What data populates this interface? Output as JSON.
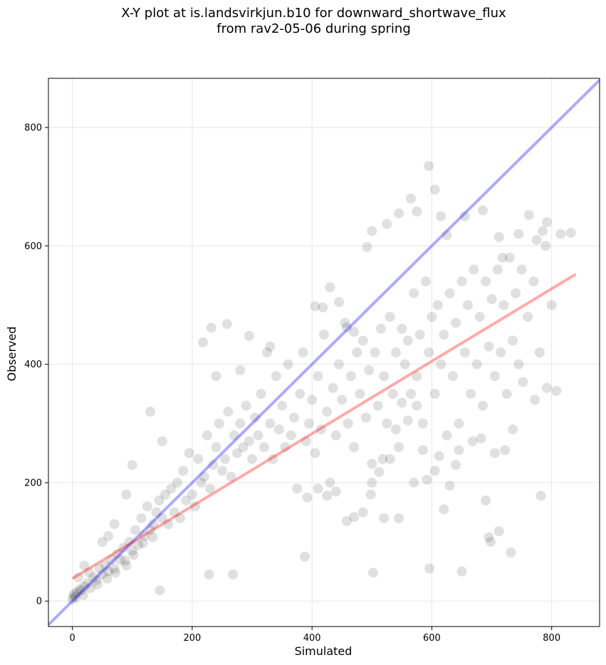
{
  "chart_data": {
    "type": "scatter",
    "title_lines": [
      "X-Y plot at is.landsvirkjun.b10 for downward_shortwave_flux",
      "from rav2-05-06 during spring"
    ],
    "xlabel": "Simulated",
    "ylabel": "Observed",
    "xlim": [
      -40,
      880
    ],
    "ylim": [
      -43,
      883
    ],
    "xticks": [
      0,
      200,
      400,
      600,
      800
    ],
    "yticks": [
      0,
      200,
      400,
      600,
      800
    ],
    "grid": true,
    "points": {
      "color": "#000000",
      "opacity": 0.12,
      "samples": [
        [
          0,
          3
        ],
        [
          2,
          8
        ],
        [
          5,
          6
        ],
        [
          8,
          15
        ],
        [
          3,
          12
        ],
        [
          12,
          20
        ],
        [
          15,
          18
        ],
        [
          20,
          25
        ],
        [
          25,
          30
        ],
        [
          30,
          22
        ],
        [
          18,
          10
        ],
        [
          35,
          40
        ],
        [
          40,
          35
        ],
        [
          45,
          55
        ],
        [
          50,
          45
        ],
        [
          55,
          60
        ],
        [
          60,
          50
        ],
        [
          65,
          70
        ],
        [
          70,
          55
        ],
        [
          75,
          80
        ],
        [
          80,
          70
        ],
        [
          85,
          90
        ],
        [
          90,
          60
        ],
        [
          95,
          100
        ],
        [
          100,
          85
        ],
        [
          105,
          120
        ],
        [
          110,
          95
        ],
        [
          115,
          140
        ],
        [
          120,
          110
        ],
        [
          125,
          160
        ],
        [
          130,
          120
        ],
        [
          135,
          130
        ],
        [
          140,
          150
        ],
        [
          145,
          170
        ],
        [
          150,
          140
        ],
        [
          155,
          180
        ],
        [
          160,
          130
        ],
        [
          165,
          190
        ],
        [
          170,
          150
        ],
        [
          175,
          200
        ],
        [
          180,
          140
        ],
        [
          185,
          220
        ],
        [
          190,
          170
        ],
        [
          195,
          250
        ],
        [
          200,
          180
        ],
        [
          205,
          160
        ],
        [
          210,
          240
        ],
        [
          215,
          200
        ],
        [
          220,
          210
        ],
        [
          225,
          280
        ],
        [
          230,
          190
        ],
        [
          235,
          230
        ],
        [
          240,
          260
        ],
        [
          245,
          300
        ],
        [
          250,
          220
        ],
        [
          255,
          240
        ],
        [
          260,
          320
        ],
        [
          265,
          210
        ],
        [
          270,
          280
        ],
        [
          275,
          250
        ],
        [
          280,
          300
        ],
        [
          285,
          260
        ],
        [
          290,
          330
        ],
        [
          295,
          270
        ],
        [
          300,
          240
        ],
        [
          305,
          310
        ],
        [
          310,
          280
        ],
        [
          315,
          350
        ],
        [
          320,
          260
        ],
        [
          325,
          420
        ],
        [
          330,
          300
        ],
        [
          335,
          240
        ],
        [
          340,
          380
        ],
        [
          345,
          290
        ],
        [
          350,
          330
        ],
        [
          355,
          260
        ],
        [
          360,
          400
        ],
        [
          365,
          280
        ],
        [
          370,
          310
        ],
        [
          375,
          190
        ],
        [
          380,
          350
        ],
        [
          385,
          420
        ],
        [
          390,
          270
        ],
        [
          395,
          300
        ],
        [
          400,
          340
        ],
        [
          405,
          250
        ],
        [
          410,
          380
        ],
        [
          415,
          290
        ],
        [
          420,
          450
        ],
        [
          425,
          320
        ],
        [
          430,
          200
        ],
        [
          435,
          360
        ],
        [
          440,
          280
        ],
        [
          445,
          400
        ],
        [
          450,
          340
        ],
        [
          455,
          470
        ],
        [
          460,
          300
        ],
        [
          465,
          380
        ],
        [
          470,
          260
        ],
        [
          475,
          420
        ],
        [
          480,
          350
        ],
        [
          485,
          440
        ],
        [
          490,
          310
        ],
        [
          495,
          390
        ],
        [
          500,
          200
        ],
        [
          505,
          420
        ],
        [
          510,
          330
        ],
        [
          515,
          460
        ],
        [
          520,
          380
        ],
        [
          525,
          300
        ],
        [
          530,
          480
        ],
        [
          535,
          350
        ],
        [
          540,
          420
        ],
        [
          545,
          260
        ],
        [
          550,
          460
        ],
        [
          555,
          400
        ],
        [
          560,
          440
        ],
        [
          565,
          350
        ],
        [
          570,
          520
        ],
        [
          575,
          380
        ],
        [
          580,
          450
        ],
        [
          585,
          300
        ],
        [
          590,
          540
        ],
        [
          595,
          420
        ],
        [
          600,
          480
        ],
        [
          605,
          350
        ],
        [
          610,
          500
        ],
        [
          615,
          400
        ],
        [
          620,
          450
        ],
        [
          625,
          280
        ],
        [
          630,
          520
        ],
        [
          635,
          380
        ],
        [
          640,
          470
        ],
        [
          645,
          300
        ],
        [
          650,
          540
        ],
        [
          655,
          420
        ],
        [
          660,
          500
        ],
        [
          665,
          350
        ],
        [
          670,
          560
        ],
        [
          675,
          400
        ],
        [
          680,
          480
        ],
        [
          685,
          330
        ],
        [
          690,
          540
        ],
        [
          695,
          430
        ],
        [
          700,
          510
        ],
        [
          705,
          380
        ],
        [
          710,
          560
        ],
        [
          715,
          420
        ],
        [
          720,
          500
        ],
        [
          725,
          350
        ],
        [
          730,
          580
        ],
        [
          735,
          440
        ],
        [
          740,
          520
        ],
        [
          745,
          400
        ],
        [
          750,
          560
        ],
        [
          760,
          480
        ],
        [
          770,
          540
        ],
        [
          780,
          420
        ],
        [
          790,
          600
        ],
        [
          800,
          500
        ],
        [
          330,
          430
        ],
        [
          280,
          390
        ],
        [
          240,
          380
        ],
        [
          150,
          270
        ],
        [
          130,
          320
        ],
        [
          100,
          230
        ],
        [
          90,
          180
        ],
        [
          70,
          130
        ],
        [
          60,
          110
        ],
        [
          50,
          100
        ],
        [
          20,
          60
        ],
        [
          10,
          40
        ],
        [
          28,
          48
        ],
        [
          42,
          28
        ],
        [
          58,
          38
        ],
        [
          72,
          48
        ],
        [
          88,
          68
        ],
        [
          102,
          78
        ],
        [
          118,
          98
        ],
        [
          134,
          108
        ],
        [
          146,
          18
        ],
        [
          228,
          45
        ],
        [
          268,
          45
        ],
        [
          388,
          75
        ],
        [
          502,
          48
        ],
        [
          596,
          55
        ],
        [
          650,
          50
        ],
        [
          732,
          82
        ],
        [
          698,
          100
        ],
        [
          712,
          118
        ],
        [
          695,
          108
        ],
        [
          545,
          140
        ],
        [
          458,
          135
        ],
        [
          470,
          142
        ],
        [
          520,
          140
        ],
        [
          485,
          150
        ],
        [
          425,
          178
        ],
        [
          440,
          185
        ],
        [
          410,
          190
        ],
        [
          392,
          175
        ],
        [
          218,
          437
        ],
        [
          258,
          468
        ],
        [
          232,
          462
        ],
        [
          295,
          448
        ],
        [
          405,
          498
        ],
        [
          418,
          496
        ],
        [
          430,
          530
        ],
        [
          445,
          505
        ],
        [
          458,
          462
        ],
        [
          470,
          455
        ],
        [
          492,
          598
        ],
        [
          500,
          625
        ],
        [
          525,
          637
        ],
        [
          545,
          655
        ],
        [
          565,
          680
        ],
        [
          575,
          658
        ],
        [
          595,
          735
        ],
        [
          605,
          695
        ],
        [
          615,
          650
        ],
        [
          625,
          618
        ],
        [
          655,
          650
        ],
        [
          685,
          660
        ],
        [
          712,
          615
        ],
        [
          718,
          580
        ],
        [
          745,
          620
        ],
        [
          762,
          652
        ],
        [
          775,
          610
        ],
        [
          785,
          625
        ],
        [
          792,
          640
        ],
        [
          815,
          620
        ],
        [
          832,
          622
        ],
        [
          782,
          178
        ],
        [
          792,
          360
        ],
        [
          808,
          355
        ],
        [
          772,
          340
        ],
        [
          752,
          370
        ],
        [
          735,
          290
        ],
        [
          722,
          255
        ],
        [
          705,
          250
        ],
        [
          690,
          170
        ],
        [
          682,
          275
        ],
        [
          668,
          270
        ],
        [
          645,
          255
        ],
        [
          640,
          230
        ],
        [
          630,
          195
        ],
        [
          620,
          155
        ],
        [
          612,
          245
        ],
        [
          605,
          220
        ],
        [
          592,
          205
        ],
        [
          570,
          200
        ],
        [
          585,
          255
        ],
        [
          575,
          330
        ],
        [
          560,
          305
        ],
        [
          550,
          335
        ],
        [
          540,
          290
        ],
        [
          530,
          240
        ],
        [
          518,
          240
        ],
        [
          512,
          218
        ],
        [
          500,
          232
        ],
        [
          498,
          180
        ]
      ]
    },
    "series": [
      {
        "color": "#0000ff",
        "opacity": 0.33,
        "x": [
          -40,
          880
        ],
        "y": [
          -40,
          880
        ]
      },
      {
        "color": "#ff0000",
        "opacity": 0.33,
        "x": [
          0,
          840
        ],
        "y": [
          38,
          552
        ]
      }
    ]
  }
}
